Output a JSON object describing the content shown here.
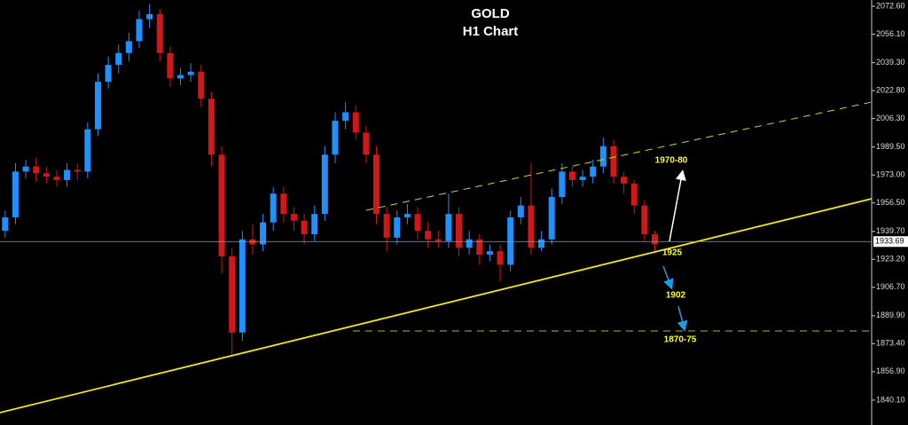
{
  "chart_data": {
    "type": "candlestick",
    "title": "GOLD",
    "subtitle": "H1 Chart",
    "series": {
      "open": [
        1940,
        1948,
        1975,
        1978,
        1974,
        1972,
        1970,
        1976,
        1975,
        2000,
        2028,
        2038,
        2045,
        2052,
        2065,
        2068,
        2045,
        2030,
        2032,
        2034,
        2018,
        1985,
        1925,
        1880,
        1935,
        1932,
        1945,
        1962,
        1950,
        1946,
        1938,
        1950,
        1985,
        2005,
        2010,
        1998,
        1985,
        1950,
        1936,
        1948,
        1950,
        1940,
        1935,
        1934,
        1950,
        1930,
        1935,
        1926,
        1928,
        1920,
        1948,
        1955,
        1930,
        1935,
        1960,
        1975,
        1970,
        1972,
        1978,
        1990,
        1972,
        1968,
        1955,
        1938
      ],
      "high": [
        1952,
        1980,
        1982,
        1983,
        1978,
        1976,
        1980,
        1980,
        2004,
        2033,
        2043,
        2050,
        2057,
        2070,
        2074,
        2071,
        2049,
        2036,
        2039,
        2038,
        2022,
        1990,
        1930,
        1940,
        1944,
        1950,
        1966,
        1966,
        1954,
        1950,
        1955,
        1990,
        2010,
        2016,
        2014,
        2002,
        1990,
        1954,
        1952,
        1956,
        1954,
        1945,
        1940,
        1962,
        1954,
        1940,
        1938,
        1932,
        1932,
        1952,
        1960,
        1980,
        1940,
        1965,
        1980,
        1978,
        1976,
        1982,
        1995,
        1994,
        1975,
        1970,
        1958,
        1940
      ],
      "low": [
        1936,
        1944,
        1971,
        1969,
        1968,
        1966,
        1966,
        1970,
        1971,
        1996,
        2024,
        2033,
        2040,
        2048,
        2060,
        2040,
        2025,
        2026,
        2028,
        2013,
        1978,
        1915,
        1866,
        1875,
        1926,
        1928,
        1940,
        1945,
        1940,
        1932,
        1934,
        1946,
        1980,
        2000,
        1994,
        1980,
        1944,
        1928,
        1932,
        1944,
        1935,
        1930,
        1930,
        1930,
        1925,
        1926,
        1920,
        1922,
        1910,
        1916,
        1944,
        1926,
        1928,
        1932,
        1956,
        1966,
        1966,
        1968,
        1974,
        1968,
        1962,
        1950,
        1934,
        1928
      ],
      "close": [
        1948,
        1975,
        1978,
        1974,
        1972,
        1970,
        1976,
        1975,
        2000,
        2028,
        2038,
        2045,
        2052,
        2065,
        2068,
        2045,
        2030,
        2032,
        2034,
        2018,
        1985,
        1925,
        1880,
        1935,
        1932,
        1945,
        1962,
        1950,
        1946,
        1938,
        1950,
        1985,
        2005,
        2010,
        1998,
        1985,
        1950,
        1936,
        1948,
        1950,
        1940,
        1935,
        1934,
        1950,
        1930,
        1935,
        1926,
        1928,
        1920,
        1948,
        1955,
        1930,
        1935,
        1960,
        1975,
        1970,
        1972,
        1978,
        1990,
        1972,
        1968,
        1955,
        1938,
        1932
      ]
    },
    "up_color": "#1e90ff",
    "down_color": "#d01818",
    "last_price": 1933.69,
    "ylim": [
      1825.4,
      2076.3
    ],
    "yticks": [
      {
        "value": 2072.6,
        "label": "2072.60"
      },
      {
        "value": 2056.1,
        "label": "2056.10"
      },
      {
        "value": 2039.3,
        "label": "2039.30"
      },
      {
        "value": 2022.8,
        "label": "2022.80"
      },
      {
        "value": 2006.3,
        "label": "2006.30"
      },
      {
        "value": 1989.5,
        "label": "1989.50"
      },
      {
        "value": 1973,
        "label": "1973.00"
      },
      {
        "value": 1956.5,
        "label": "1956.50"
      },
      {
        "value": 1939.7,
        "label": "1939.70"
      },
      {
        "value": 1923.2,
        "label": "1923.20"
      },
      {
        "value": 1906.7,
        "label": "1906.70"
      },
      {
        "value": 1889.9,
        "label": "1889.90"
      },
      {
        "value": 1873.4,
        "label": "1873.40"
      },
      {
        "value": 1856.9,
        "label": "1856.90"
      },
      {
        "value": 1840.1,
        "label": "1840.10"
      }
    ],
    "annotations": [
      "1970-80",
      "1925",
      "1902",
      "1870-75"
    ]
  }
}
